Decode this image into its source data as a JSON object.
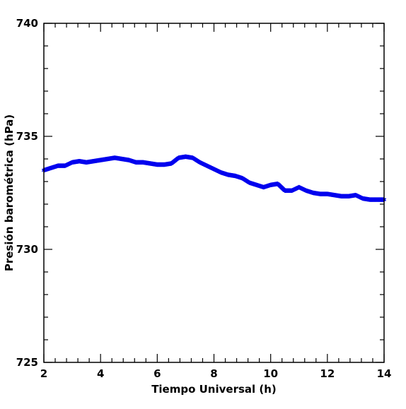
{
  "chart_data": {
    "type": "scatter",
    "marker": "asterisk",
    "xlabel": "Tiempo Universal (h)",
    "ylabel": "Presión barométrica (hPa)",
    "xlim": [
      2,
      14
    ],
    "ylim": [
      725,
      740
    ],
    "xticks": [
      2,
      4,
      6,
      8,
      10,
      12,
      14
    ],
    "yticks": [
      725,
      730,
      735,
      740
    ],
    "x_minor_step": 0.4,
    "y_minor_step": 1,
    "grid": false,
    "series_color": "#0000ee",
    "x": [
      2.0,
      2.25,
      2.5,
      2.75,
      3.0,
      3.25,
      3.5,
      3.75,
      4.0,
      4.25,
      4.5,
      4.75,
      5.0,
      5.25,
      5.5,
      5.75,
      6.0,
      6.25,
      6.5,
      6.75,
      7.0,
      7.25,
      7.5,
      7.75,
      8.0,
      8.25,
      8.5,
      8.75,
      9.0,
      9.25,
      9.5,
      9.75,
      10.0,
      10.25,
      10.5,
      10.75,
      11.0,
      11.25,
      11.5,
      11.75,
      12.0,
      12.25,
      12.5,
      12.75,
      13.0,
      13.25,
      13.5,
      13.75,
      14.0
    ],
    "y": [
      733.5,
      733.6,
      733.7,
      733.7,
      733.85,
      733.9,
      733.85,
      733.9,
      733.95,
      734.0,
      734.05,
      734.0,
      733.95,
      733.85,
      733.85,
      733.8,
      733.75,
      733.75,
      733.8,
      734.05,
      734.1,
      734.05,
      733.85,
      733.7,
      733.55,
      733.4,
      733.3,
      733.25,
      733.15,
      732.95,
      732.85,
      732.75,
      732.85,
      732.9,
      732.6,
      732.6,
      732.75,
      732.6,
      732.5,
      732.45,
      732.45,
      732.4,
      732.35,
      732.35,
      732.4,
      732.25,
      732.2,
      732.2,
      732.2
    ]
  }
}
